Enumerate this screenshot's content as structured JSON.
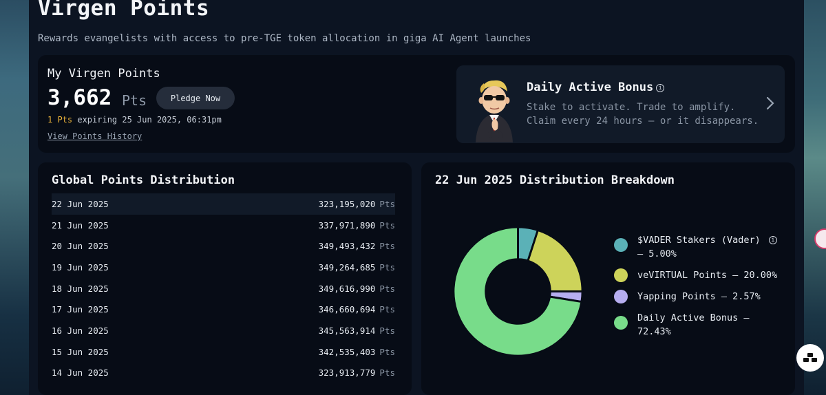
{
  "header": {
    "title": "Virgen Points",
    "subtitle": "Rewards evangelists with access to pre-TGE token allocation in giga AI Agent launches"
  },
  "my_points": {
    "label": "My Virgen Points",
    "value": "3,662",
    "unit": "Pts",
    "pledge_label": "Pledge Now",
    "expiring_amount": "1 Pts",
    "expiring_text": "expiring 25 Jun 2025, 06:31pm",
    "history_link": "View Points History"
  },
  "bonus": {
    "title": "Daily Active Bonus",
    "line1": "Stake to activate. Trade to amplify.",
    "line2": "Claim every 24 hours — or it disappears."
  },
  "distribution": {
    "title": "Global Points Distribution",
    "unit": "Pts",
    "rows": [
      {
        "date": "22 Jun 2025",
        "value": "323,195,020"
      },
      {
        "date": "21 Jun 2025",
        "value": "337,971,890"
      },
      {
        "date": "20 Jun 2025",
        "value": "349,493,432"
      },
      {
        "date": "19 Jun 2025",
        "value": "349,264,685"
      },
      {
        "date": "18 Jun 2025",
        "value": "349,616,990"
      },
      {
        "date": "17 Jun 2025",
        "value": "346,660,694"
      },
      {
        "date": "16 Jun 2025",
        "value": "345,563,914"
      },
      {
        "date": "15 Jun 2025",
        "value": "342,535,403"
      },
      {
        "date": "14 Jun 2025",
        "value": "323,913,779"
      }
    ]
  },
  "breakdown": {
    "title": "22 Jun 2025 Distribution Breakdown",
    "legend": [
      {
        "line1": "$VADER Stakers (Vader)",
        "line2": "– 5.00%",
        "color": "#5bb1b7"
      },
      {
        "line1": "veVIRTUAL Points – 20.00%",
        "line2": "",
        "color": "#cdd35a"
      },
      {
        "line1": "Yapping Points – 2.57%",
        "line2": "",
        "color": "#b6aef0"
      },
      {
        "line1": "Daily Active Bonus –",
        "line2": "72.43%",
        "color": "#78dc8a"
      }
    ]
  },
  "chart_data": {
    "type": "pie",
    "title": "22 Jun 2025 Distribution Breakdown",
    "categories": [
      "$VADER Stakers (Vader)",
      "veVIRTUAL Points",
      "Yapping Points",
      "Daily Active Bonus"
    ],
    "values": [
      5.0,
      20.0,
      2.57,
      72.43
    ],
    "colors": [
      "#5bb1b7",
      "#cdd35a",
      "#b6aef0",
      "#78dc8a"
    ]
  }
}
